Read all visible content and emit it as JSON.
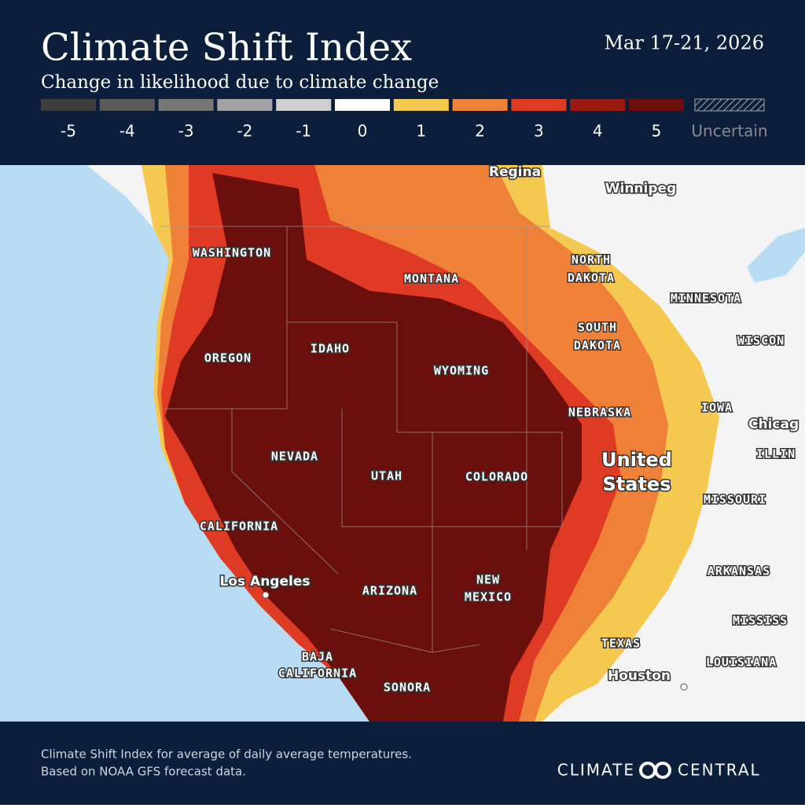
{
  "header": {
    "title": "Climate Shift Index",
    "subtitle": "Change in likelihood due to climate change",
    "date": "Mar 17-21, 2026"
  },
  "legend": {
    "items": [
      {
        "value": -5,
        "color": "#3d3d3d"
      },
      {
        "value": -4,
        "color": "#5a5a5a"
      },
      {
        "value": -3,
        "color": "#777777"
      },
      {
        "value": -2,
        "color": "#a3a3a3"
      },
      {
        "value": -1,
        "color": "#cfcfcf"
      },
      {
        "value": 0,
        "color": "#ffffff"
      },
      {
        "value": 1,
        "color": "#f5c94f"
      },
      {
        "value": 2,
        "color": "#ee8038"
      },
      {
        "value": 3,
        "color": "#df3a23"
      },
      {
        "value": 4,
        "color": "#9a1b12"
      },
      {
        "value": 5,
        "color": "#6b0f0c"
      }
    ],
    "uncertain": "Uncertain"
  },
  "map": {
    "places": [
      "Regina",
      "Winnipeg",
      "WASHINGTON",
      "MONTANA",
      "NORTH",
      "DAKOTA",
      "MINNESOTA",
      "SOUTH",
      "DAKOTA",
      "WISCON",
      "OREGON",
      "IDAHO",
      "WYOMING",
      "NEBRASKA",
      "IOWA",
      "Chicag",
      "ILLIN",
      "NEVADA",
      "UTAH",
      "COLORADO",
      "United",
      "States",
      "MISSOURI",
      "CALIFORNIA",
      "Los Angeles",
      "ARIZONA",
      "NEW",
      "MEXICO",
      "ARKANSAS",
      "MISSISS",
      "TEXAS",
      "LOUISIANA",
      "Houston",
      "BAJA",
      "CALIFORNIA",
      "SONORA"
    ]
  },
  "footer": {
    "note_lines": [
      "Climate Shift Index for average of daily average temperatures.",
      "Based on NOAA GFS forecast data."
    ],
    "logo": [
      "CLIMATE",
      "CENTRAL"
    ]
  }
}
